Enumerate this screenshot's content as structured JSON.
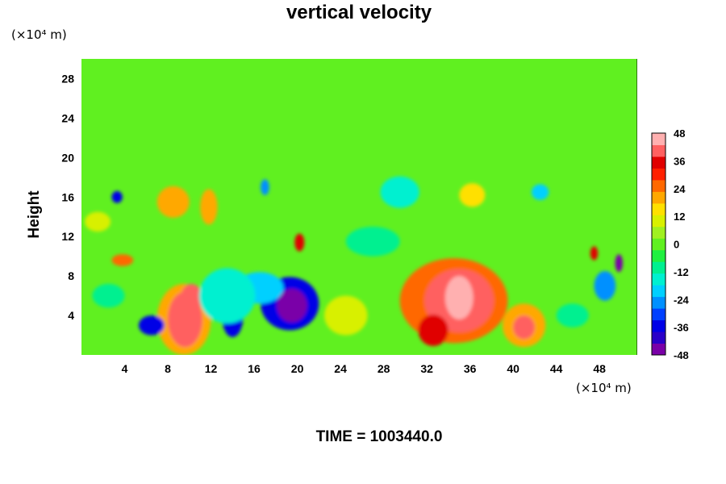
{
  "chart_data": {
    "type": "heatmap",
    "title": "vertical velocity",
    "ylabel": "Height",
    "x_unit": "(×10⁴ m)",
    "y_unit": "(×10⁴ m)",
    "xlim": [
      0,
      51.5
    ],
    "ylim": [
      0,
      30
    ],
    "x_ticks": [
      4,
      8,
      12,
      16,
      20,
      24,
      28,
      32,
      36,
      40,
      44,
      48
    ],
    "y_ticks": [
      4,
      8,
      12,
      16,
      20,
      24,
      28
    ],
    "colorbar": {
      "range": [
        -48,
        48
      ],
      "ticks": [
        48,
        36,
        24,
        12,
        0,
        -12,
        -24,
        -36,
        -48
      ],
      "colors": [
        "#7a00a8",
        "#2a00c8",
        "#0000e6",
        "#0040ff",
        "#0090ff",
        "#00d0ff",
        "#00f0d0",
        "#00f090",
        "#20f040",
        "#60f020",
        "#a0f020",
        "#d8f000",
        "#ffe000",
        "#ffa800",
        "#ff6800",
        "#ff2000",
        "#e00000",
        "#ff6060",
        "#ffb0b0"
      ]
    },
    "background_value": 0,
    "features": [
      {
        "x": 34.5,
        "y": 5.5,
        "rx": 5.0,
        "ry": 4.3,
        "value": 24
      },
      {
        "x": 35.0,
        "y": 5.5,
        "rx": 3.2,
        "ry": 3.2,
        "value": 38
      },
      {
        "x": 35.0,
        "y": 5.8,
        "rx": 1.3,
        "ry": 2.2,
        "value": 50
      },
      {
        "x": 32.6,
        "y": 2.5,
        "rx": 1.4,
        "ry": 1.6,
        "value": 34
      },
      {
        "x": 41.0,
        "y": 3.0,
        "rx": 2.0,
        "ry": 2.2,
        "value": 22
      },
      {
        "x": 41.0,
        "y": 2.8,
        "rx": 1.0,
        "ry": 1.2,
        "value": 38
      },
      {
        "x": 9.5,
        "y": 3.6,
        "rx": 2.5,
        "ry": 3.6,
        "value": 22
      },
      {
        "x": 9.6,
        "y": 3.6,
        "rx": 1.6,
        "ry": 2.8,
        "value": 38
      },
      {
        "x": 10.2,
        "y": 5.8,
        "rx": 1.0,
        "ry": 1.4,
        "value": 42
      },
      {
        "x": 19.3,
        "y": 5.2,
        "rx": 2.7,
        "ry": 2.7,
        "value": -34
      },
      {
        "x": 19.5,
        "y": 5.0,
        "rx": 1.4,
        "ry": 1.7,
        "value": -48
      },
      {
        "x": 6.5,
        "y": 3.0,
        "rx": 1.2,
        "ry": 1.0,
        "value": -36
      },
      {
        "x": 14.0,
        "y": 4.0,
        "rx": 1.0,
        "ry": 2.2,
        "value": -36
      },
      {
        "x": 16.5,
        "y": 6.8,
        "rx": 2.2,
        "ry": 1.6,
        "value": -22
      },
      {
        "x": 13.5,
        "y": 6.0,
        "rx": 2.6,
        "ry": 2.8,
        "value": -14
      },
      {
        "x": 20.2,
        "y": 11.4,
        "rx": 0.45,
        "ry": 0.9,
        "value": 36
      },
      {
        "x": 3.8,
        "y": 9.6,
        "rx": 1.0,
        "ry": 0.6,
        "value": 26
      },
      {
        "x": 3.3,
        "y": 16.0,
        "rx": 0.5,
        "ry": 0.6,
        "value": -36
      },
      {
        "x": 8.5,
        "y": 15.5,
        "rx": 1.5,
        "ry": 1.6,
        "value": 18
      },
      {
        "x": 11.8,
        "y": 15.0,
        "rx": 0.8,
        "ry": 1.8,
        "value": 18
      },
      {
        "x": 49.8,
        "y": 9.3,
        "rx": 0.35,
        "ry": 0.9,
        "value": -44
      },
      {
        "x": 47.5,
        "y": 10.3,
        "rx": 0.35,
        "ry": 0.7,
        "value": 34
      },
      {
        "x": 29.5,
        "y": 16.5,
        "rx": 1.8,
        "ry": 1.6,
        "value": -14
      },
      {
        "x": 36.2,
        "y": 16.2,
        "rx": 1.2,
        "ry": 1.2,
        "value": 14
      },
      {
        "x": 42.5,
        "y": 16.5,
        "rx": 0.8,
        "ry": 0.8,
        "value": -20
      },
      {
        "x": 17.0,
        "y": 17.0,
        "rx": 0.4,
        "ry": 0.8,
        "value": -26
      },
      {
        "x": 45.5,
        "y": 4.0,
        "rx": 1.5,
        "ry": 1.2,
        "value": -12
      },
      {
        "x": 2.5,
        "y": 6.0,
        "rx": 1.5,
        "ry": 1.2,
        "value": -10
      },
      {
        "x": 24.5,
        "y": 4.0,
        "rx": 2.0,
        "ry": 2.0,
        "value": 8
      },
      {
        "x": 1.5,
        "y": 13.5,
        "rx": 1.2,
        "ry": 1.0,
        "value": 12
      },
      {
        "x": 27.0,
        "y": 11.5,
        "rx": 2.5,
        "ry": 1.5,
        "value": -8
      },
      {
        "x": 48.5,
        "y": 7.0,
        "rx": 1.0,
        "ry": 1.5,
        "value": -24
      }
    ]
  },
  "time_label": "TIME = 1003440.0"
}
